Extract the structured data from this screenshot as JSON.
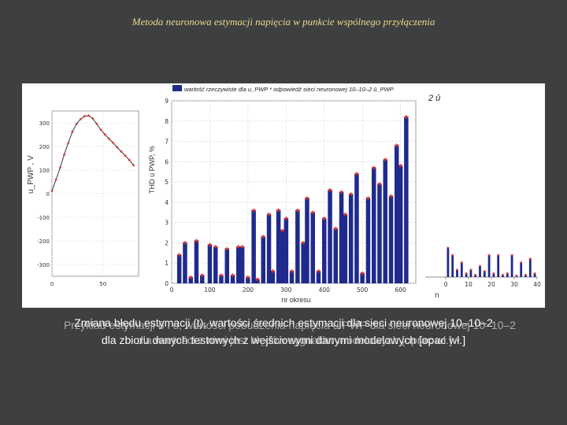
{
  "slide": {
    "title": "Metoda neuronowa estymacji napięcia w punkcie wspólnego przyłączenia",
    "caption_line1": "Zmiana błędu estymacji (t), wartości średnich estymacji dla sieci neuronowej 10–10–2",
    "caption_line2": "dla zbioru danych testowych z wejściowymi danymi modelowych [opac wł.]",
    "caption_overlay_line1": "Przykład estymacji û i u, wartości pobudzenia napięcia u PWP dla sieci neuronowej 10–10–2",
    "caption_overlay_line2": "dla wartości z nimi jest błędów sygnałów modelowych [oprac wł.]"
  },
  "left_plot": {
    "ylabel": "u_PWP , V",
    "y_ticks": [
      "300",
      "200",
      "100",
      "0",
      "-100",
      "-200",
      "-300"
    ],
    "x_ticks": [
      "0",
      "50"
    ]
  },
  "middle_plot": {
    "legend": "wartość rzeczywiste dla u_PWP * odpowiedź sieci neuronowej 10–10–2 û_PWP",
    "ylabel": "THD u PWP, %",
    "xlabel": "nr okresu",
    "y_ticks": [
      "0",
      "1",
      "2",
      "3",
      "4",
      "5",
      "6",
      "7",
      "8",
      "9"
    ],
    "x_ticks": [
      "0",
      "100",
      "200",
      "300",
      "400",
      "500",
      "600"
    ]
  },
  "right_plot": {
    "top_label": "2 û",
    "x_ticks": [
      "0",
      "10",
      "20",
      "30",
      "40"
    ],
    "xlabel": "n"
  },
  "colors": {
    "bar": "#1f2a8c",
    "marker": "#e0302a",
    "background": "#3d3f41",
    "title": "#e9d98a"
  },
  "chart_data": [
    {
      "type": "line",
      "xlabel": "",
      "ylabel": "u_PWP , V",
      "x": [
        0,
        4,
        8,
        12,
        16,
        20,
        24,
        28,
        32,
        36,
        40,
        44,
        48,
        52,
        56,
        60,
        64,
        68,
        72,
        76,
        80
      ],
      "values": [
        12,
        60,
        110,
        165,
        215,
        262,
        295,
        315,
        328,
        330,
        318,
        295,
        270,
        250,
        232,
        215,
        196,
        178,
        160,
        142,
        120
      ],
      "ylim": [
        -350,
        350
      ],
      "xlim": [
        0,
        85
      ]
    },
    {
      "type": "bar",
      "xlabel": "nr okresu",
      "ylabel": "THD u PWP, %",
      "x": [
        20,
        35,
        50,
        65,
        80,
        100,
        115,
        130,
        145,
        160,
        175,
        185,
        200,
        215,
        225,
        240,
        255,
        265,
        280,
        290,
        300,
        315,
        330,
        345,
        355,
        370,
        385,
        400,
        415,
        430,
        445,
        455,
        470,
        485,
        500,
        515,
        530,
        545,
        560,
        575,
        590,
        600,
        615
      ],
      "values": [
        1.4,
        2.0,
        0.3,
        2.1,
        0.4,
        1.9,
        1.8,
        0.4,
        1.7,
        0.4,
        1.8,
        1.8,
        0.3,
        3.6,
        0.2,
        2.3,
        3.4,
        0.6,
        3.6,
        2.6,
        3.2,
        0.6,
        3.6,
        2.0,
        4.2,
        3.5,
        0.6,
        3.2,
        4.6,
        2.7,
        4.5,
        3.4,
        4.4,
        5.4,
        0.5,
        4.2,
        5.7,
        4.9,
        6.1,
        4.3,
        6.8,
        5.8,
        8.2
      ],
      "ylim": [
        0,
        9
      ],
      "xlim": [
        0,
        640
      ]
    },
    {
      "type": "bar",
      "xlabel": "n",
      "ylabel": "",
      "x": [
        1,
        3,
        5,
        7,
        9,
        11,
        13,
        15,
        17,
        19,
        21,
        23,
        25,
        27,
        29,
        31,
        33,
        35,
        37,
        39
      ],
      "values": [
        0.4,
        0.3,
        0.1,
        0.2,
        0.05,
        0.1,
        0.03,
        0.15,
        0.08,
        0.3,
        0.05,
        0.3,
        0.03,
        0.05,
        0.3,
        0.02,
        0.2,
        0.03,
        0.25,
        0.05
      ],
      "ylim": [
        0,
        2
      ],
      "xlim": [
        0,
        40
      ]
    }
  ]
}
